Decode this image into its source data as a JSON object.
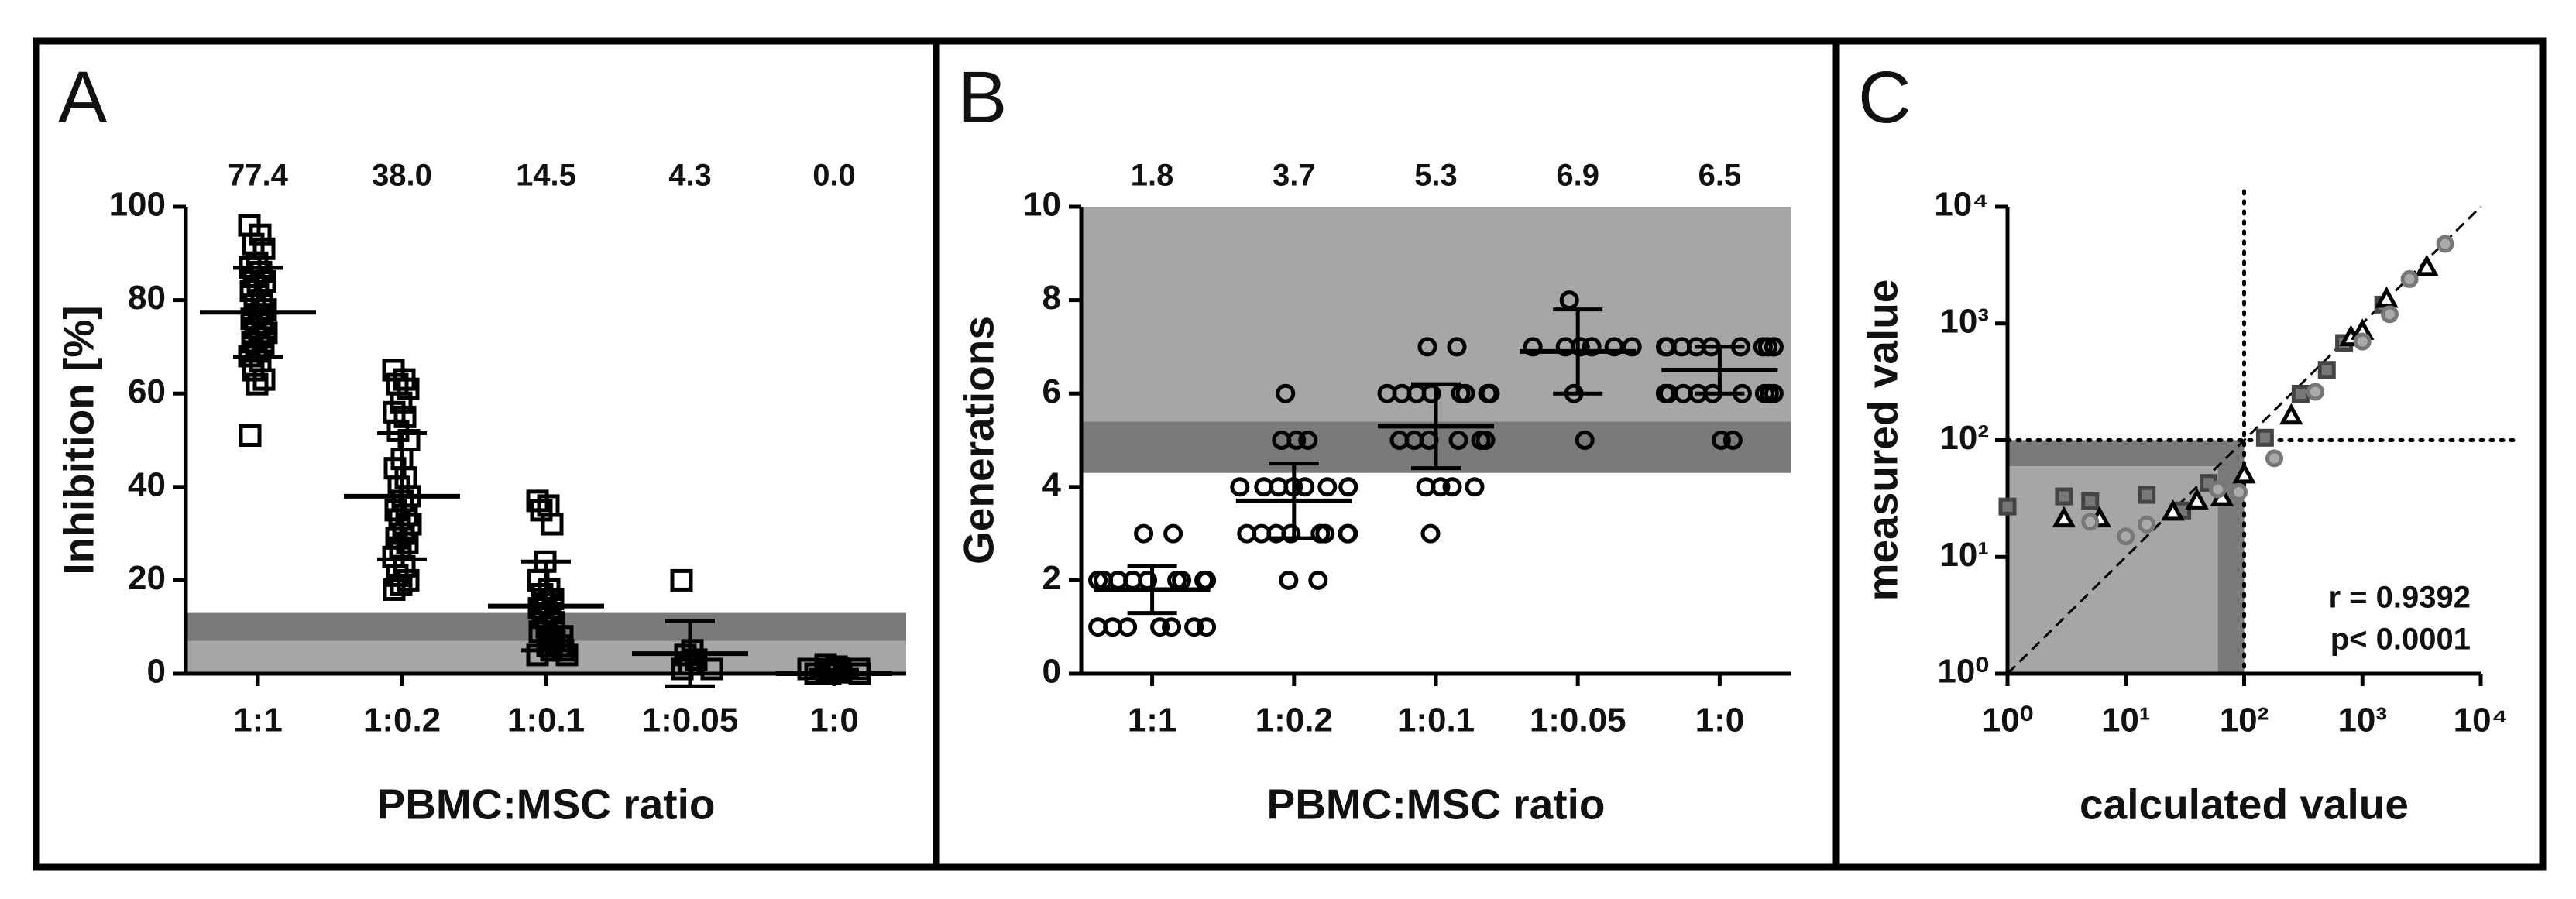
{
  "chart_data": [
    {
      "type": "dotplot",
      "panel": "A",
      "marker": "square",
      "ylabel": "Inhibition [%]",
      "xlabel": "PBMC:MSC ratio",
      "categories": [
        "1:1",
        "1:0.2",
        "1:0.1",
        "1:0.05",
        "1:0"
      ],
      "values": [
        [
          96,
          94,
          92,
          91,
          88,
          87,
          86,
          85,
          84,
          83,
          82,
          80,
          79,
          78,
          77,
          76,
          75,
          74,
          73,
          72,
          71,
          70,
          69,
          68,
          67,
          65,
          63,
          62,
          51
        ],
        [
          65,
          63,
          62,
          61,
          58,
          56,
          55,
          52,
          50,
          46,
          44,
          42,
          40,
          38,
          37,
          35,
          34,
          33,
          32,
          30,
          29,
          28,
          27,
          25,
          23,
          21,
          20,
          19,
          18
        ],
        [
          37,
          36,
          35,
          32,
          24,
          20,
          18,
          17,
          16,
          15,
          14,
          13,
          12,
          11,
          10,
          9,
          8,
          8,
          7,
          6,
          6,
          5,
          5,
          4,
          4
        ],
        [
          20,
          5,
          4,
          3,
          2,
          1,
          1
        ],
        [
          2,
          1.5,
          1,
          1,
          0.8,
          0.5,
          0.3,
          0,
          0,
          0,
          1,
          1.2
        ]
      ],
      "means": [
        77.4,
        38,
        14.5,
        4.3,
        0
      ],
      "mean_labels": [
        "77.4",
        "38.0",
        "14.5",
        "4.3",
        "0.0"
      ],
      "sd": [
        9.5,
        13.5,
        9.5,
        7,
        0.8
      ],
      "bands": [
        {
          "from": 0,
          "to": 7,
          "color": "#a6a6a6"
        },
        {
          "from": 7,
          "to": 13,
          "color": "#7a7a7a"
        }
      ],
      "ylim": [
        0,
        100
      ],
      "yticks": [
        0,
        20,
        40,
        60,
        80,
        100
      ]
    },
    {
      "type": "dotplot",
      "panel": "B",
      "marker": "circle",
      "ylabel": "Generations",
      "xlabel": "PBMC:MSC ratio",
      "categories": [
        "1:1",
        "1:0.2",
        "1:0.1",
        "1:0.05",
        "1:0"
      ],
      "values": [
        [
          3,
          3,
          2,
          2,
          2,
          2,
          2,
          2,
          2,
          2,
          2,
          2,
          2,
          1,
          1,
          1,
          1,
          1,
          1,
          1
        ],
        [
          6,
          5,
          5,
          5,
          4,
          4,
          4,
          4,
          4,
          4,
          4,
          4,
          3,
          3,
          3,
          3,
          3,
          3,
          3,
          3,
          2,
          2
        ],
        [
          7,
          7,
          6,
          6,
          6,
          6,
          6,
          6,
          6,
          6,
          5,
          5,
          5,
          5,
          5,
          5,
          4,
          4,
          4,
          4,
          3
        ],
        [
          8,
          7,
          7,
          7,
          7,
          7,
          7,
          6,
          5
        ],
        [
          7,
          7,
          7,
          7,
          7,
          7,
          7,
          7,
          7,
          7,
          6,
          6,
          6,
          6,
          6,
          6,
          6,
          6,
          6,
          5,
          5
        ]
      ],
      "means": [
        1.8,
        3.7,
        5.3,
        6.9,
        6.5
      ],
      "mean_labels": [
        "1.8",
        "3.7",
        "5.3",
        "6.9",
        "6.5"
      ],
      "sd": [
        0.5,
        0.8,
        0.9,
        0.9,
        0.5
      ],
      "bands": [
        {
          "from": 5.4,
          "to": 10,
          "color": "#a6a6a6"
        },
        {
          "from": 4.3,
          "to": 5.4,
          "color": "#7a7a7a"
        }
      ],
      "ylim": [
        0,
        10
      ],
      "yticks": [
        0,
        2,
        4,
        6,
        8,
        10
      ]
    },
    {
      "type": "scatter",
      "panel": "C",
      "ylabel": "measured value",
      "xlabel": "calculated value",
      "log": true,
      "xlim": [
        1,
        10000
      ],
      "ylim": [
        1,
        10000
      ],
      "xticks": [
        {
          "value": 1,
          "label": "10⁰"
        },
        {
          "value": 10,
          "label": "10¹"
        },
        {
          "value": 100,
          "label": "10²"
        },
        {
          "value": 1000,
          "label": "10³"
        },
        {
          "value": 10000,
          "label": "10⁴"
        }
      ],
      "yticks": [
        {
          "value": 1,
          "label": "10⁰"
        },
        {
          "value": 10,
          "label": "10¹"
        },
        {
          "value": 100,
          "label": "10²"
        },
        {
          "value": 1000,
          "label": "10³"
        },
        {
          "value": 10000,
          "label": "10⁴"
        }
      ],
      "shades": [
        {
          "x": [
            1,
            100
          ],
          "y": [
            1,
            100
          ],
          "color": "#a6a6a6"
        },
        {
          "x": [
            60,
            100
          ],
          "y": [
            1,
            100
          ],
          "color": "#7a7a7a"
        },
        {
          "x": [
            1,
            100
          ],
          "y": [
            60,
            100
          ],
          "color": "#7a7a7a"
        }
      ],
      "ref_x": 100,
      "ref_y": 100,
      "identity": true,
      "annotations": [
        "r = 0.9392",
        "p< 0.0001"
      ],
      "series": [
        {
          "marker": "square",
          "color": "#777777",
          "x": [
            1,
            3,
            5,
            15,
            30,
            50,
            150,
            300,
            500,
            700,
            1500
          ],
          "values": [
            27,
            33,
            30,
            34,
            25,
            43,
            105,
            250,
            400,
            680,
            1450
          ]
        },
        {
          "marker": "triangle",
          "color": "#ffffff",
          "x": [
            3,
            6,
            25,
            40,
            65,
            100,
            250,
            800,
            1000,
            1600,
            3500
          ],
          "values": [
            21,
            21,
            24,
            30,
            32,
            50,
            160,
            750,
            850,
            1600,
            3000
          ]
        },
        {
          "marker": "circle",
          "color": "#aaaaaa",
          "x": [
            5,
            10,
            15,
            60,
            90,
            180,
            400,
            1000,
            1700,
            2500,
            5000
          ],
          "values": [
            20,
            15,
            19,
            38,
            36,
            70,
            260,
            700,
            1200,
            2400,
            4800
          ]
        }
      ]
    }
  ]
}
